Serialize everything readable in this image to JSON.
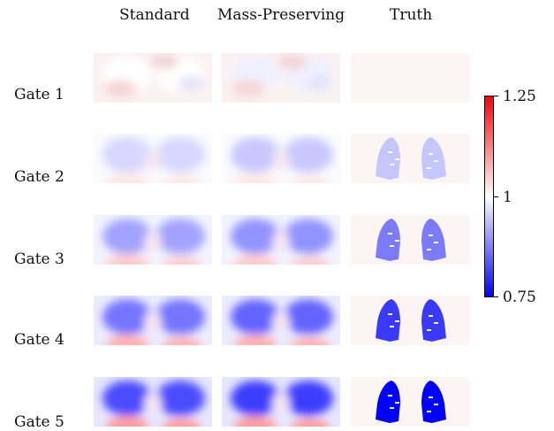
{
  "columns": [
    "Standard",
    "Mass-Preserving",
    "Truth"
  ],
  "rows": [
    {
      "label": "Gate 1",
      "level": 0.0
    },
    {
      "label": "Gate 2",
      "level": 0.06
    },
    {
      "label": "Gate 3",
      "level": 0.14
    },
    {
      "label": "Gate 4",
      "level": 0.21
    },
    {
      "label": "Gate 5",
      "level": 0.27
    }
  ],
  "colorbar": {
    "colors": {
      "high": "#ff0000",
      "mid": "#ffffff",
      "low": "#0000ff"
    },
    "range": [
      0.75,
      1.25
    ],
    "ticks": [
      "1.25",
      "1",
      "0.75"
    ]
  }
}
